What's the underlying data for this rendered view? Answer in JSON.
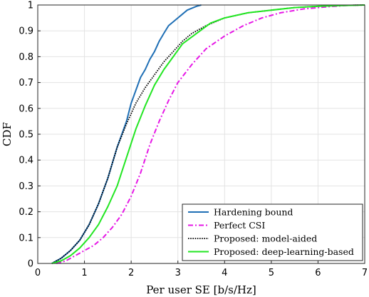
{
  "chart_data": {
    "type": "line",
    "xlabel": "Per user SE [b/s/Hz]",
    "ylabel": "CDF",
    "xlim": [
      0,
      7
    ],
    "ylim": [
      0,
      1
    ],
    "xticks": [
      "0",
      "1",
      "2",
      "3",
      "4",
      "5",
      "6",
      "7"
    ],
    "yticks": [
      "0",
      "0.1",
      "0.2",
      "0.3",
      "0.4",
      "0.5",
      "0.6",
      "0.7",
      "0.8",
      "0.9",
      "1"
    ],
    "grid": true,
    "legend_position": "bottom-right",
    "series": [
      {
        "name": "Hardening bound",
        "color": "#1f6fb5",
        "dash": "solid",
        "x": [
          0.3,
          0.5,
          0.7,
          0.9,
          1.1,
          1.3,
          1.5,
          1.7,
          1.9,
          2.0,
          2.1,
          2.2,
          2.3,
          2.4,
          2.5,
          2.6,
          2.7,
          2.8,
          3.0,
          3.2,
          3.4,
          3.5
        ],
        "y": [
          0.0,
          0.02,
          0.05,
          0.09,
          0.15,
          0.23,
          0.33,
          0.45,
          0.55,
          0.62,
          0.67,
          0.72,
          0.75,
          0.79,
          0.82,
          0.86,
          0.89,
          0.92,
          0.95,
          0.98,
          0.995,
          1.0
        ]
      },
      {
        "name": "Perfect CSI",
        "color": "#e617e6",
        "dash": "dashdot",
        "x": [
          0.4,
          0.6,
          0.8,
          1.0,
          1.2,
          1.4,
          1.6,
          1.8,
          2.0,
          2.2,
          2.4,
          2.6,
          2.8,
          3.0,
          3.3,
          3.6,
          4.0,
          4.4,
          4.8,
          5.2,
          5.7,
          6.2,
          6.6,
          7.0
        ],
        "y": [
          0.0,
          0.01,
          0.03,
          0.05,
          0.07,
          0.1,
          0.14,
          0.19,
          0.26,
          0.35,
          0.46,
          0.55,
          0.63,
          0.7,
          0.77,
          0.83,
          0.88,
          0.92,
          0.95,
          0.97,
          0.985,
          0.993,
          0.998,
          1.0
        ]
      },
      {
        "name": "Proposed: model-aided",
        "color": "#000000",
        "dash": "dotted",
        "x": [
          0.3,
          0.5,
          0.7,
          0.9,
          1.1,
          1.3,
          1.5,
          1.7,
          1.9,
          2.1,
          2.3,
          2.5,
          2.7,
          2.9,
          3.1,
          3.3,
          3.6,
          4.0,
          4.5,
          5.0,
          5.5,
          6.0,
          6.5,
          7.0
        ],
        "y": [
          0.0,
          0.02,
          0.05,
          0.09,
          0.15,
          0.23,
          0.33,
          0.45,
          0.54,
          0.62,
          0.68,
          0.73,
          0.78,
          0.82,
          0.86,
          0.89,
          0.92,
          0.95,
          0.97,
          0.98,
          0.99,
          0.995,
          0.998,
          1.0
        ]
      },
      {
        "name": "Proposed: deep-learning-based",
        "color": "#22e622",
        "dash": "solid",
        "x": [
          0.3,
          0.5,
          0.7,
          0.9,
          1.1,
          1.3,
          1.5,
          1.7,
          1.9,
          2.1,
          2.3,
          2.5,
          2.7,
          2.9,
          3.1,
          3.4,
          3.7,
          4.0,
          4.5,
          5.0,
          5.5,
          6.0,
          6.5,
          7.0
        ],
        "y": [
          0.0,
          0.01,
          0.03,
          0.06,
          0.1,
          0.15,
          0.22,
          0.3,
          0.41,
          0.52,
          0.61,
          0.69,
          0.75,
          0.8,
          0.85,
          0.89,
          0.93,
          0.95,
          0.97,
          0.98,
          0.99,
          0.995,
          0.998,
          1.0
        ]
      }
    ]
  }
}
